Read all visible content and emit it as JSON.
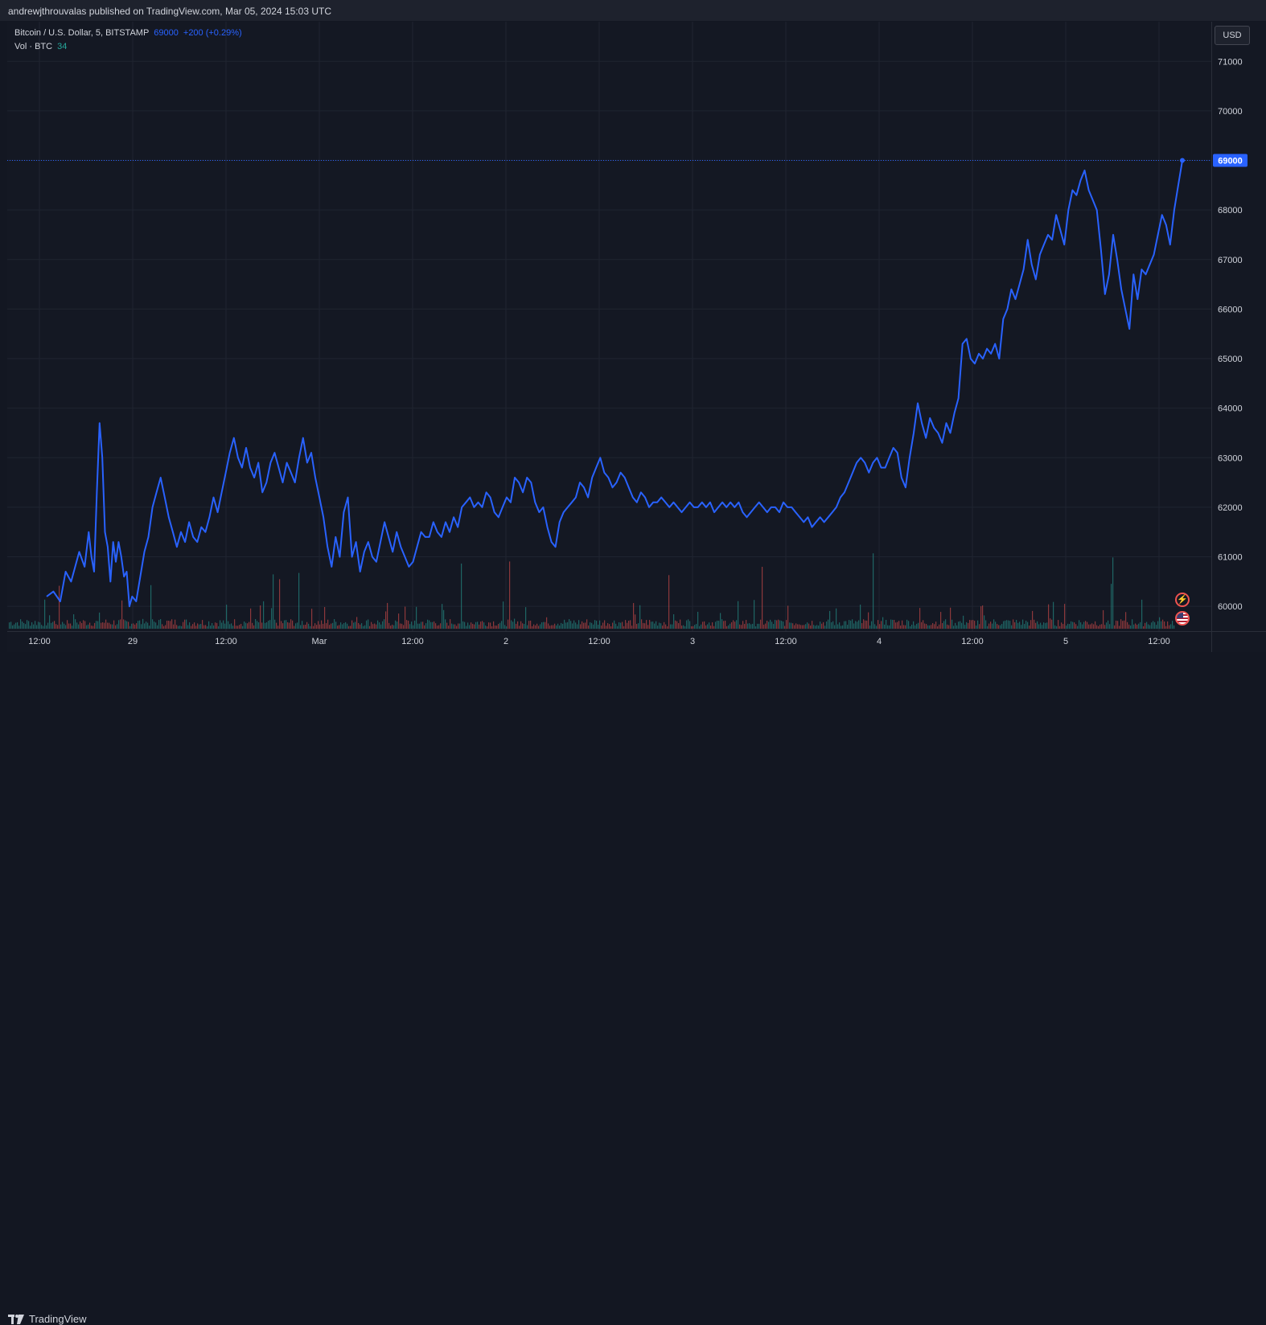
{
  "header": {
    "publisher": "andrewjthrouvalas published on TradingView.com, Mar 05, 2024 15:03 UTC"
  },
  "legend": {
    "symbol": "Bitcoin / U.S. Dollar, 5, BITSTAMP",
    "price": "69000",
    "change": "+200 (+0.29%)",
    "volume_label": "Vol · BTC",
    "volume_value": "34"
  },
  "currency_button": "USD",
  "brand": "TradingView",
  "colors": {
    "line": "#2962ff",
    "up": "#26a69a",
    "down": "#ef5350",
    "grid": "#1f2430"
  },
  "chart_data": {
    "type": "line",
    "title": "Bitcoin / U.S. Dollar, 5, BITSTAMP",
    "xlabel": "",
    "ylabel": "",
    "ylim": [
      59500,
      71800
    ],
    "y_ticks": [
      60000,
      61000,
      62000,
      63000,
      64000,
      65000,
      66000,
      67000,
      68000,
      69000,
      70000,
      71000
    ],
    "x_range_days": [
      0,
      6.28
    ],
    "x_ticks": [
      {
        "label": "12:00",
        "day": 0.5
      },
      {
        "label": "29",
        "day": 1
      },
      {
        "label": "12:00",
        "day": 1.5
      },
      {
        "label": "Mar",
        "day": 2
      },
      {
        "label": "12:00",
        "day": 2.5
      },
      {
        "label": "2",
        "day": 3
      },
      {
        "label": "12:00",
        "day": 3.5
      },
      {
        "label": "3",
        "day": 4
      },
      {
        "label": "12:00",
        "day": 4.5
      },
      {
        "label": "4",
        "day": 5
      },
      {
        "label": "12:00",
        "day": 5.5
      },
      {
        "label": "5",
        "day": 6
      },
      {
        "label": "12:00",
        "day": 6.5
      }
    ],
    "last_price": 69000,
    "series": [
      {
        "name": "BTCUSD",
        "points": [
          [
            0.0,
            60200
          ],
          [
            0.05,
            60300
          ],
          [
            0.1,
            60100
          ],
          [
            0.14,
            60700
          ],
          [
            0.18,
            60500
          ],
          [
            0.24,
            61100
          ],
          [
            0.28,
            60800
          ],
          [
            0.31,
            61500
          ],
          [
            0.33,
            61000
          ],
          [
            0.35,
            60700
          ],
          [
            0.37,
            62300
          ],
          [
            0.39,
            63700
          ],
          [
            0.41,
            63000
          ],
          [
            0.43,
            61500
          ],
          [
            0.45,
            61200
          ],
          [
            0.47,
            60500
          ],
          [
            0.49,
            61300
          ],
          [
            0.51,
            60900
          ],
          [
            0.53,
            61300
          ],
          [
            0.55,
            61000
          ],
          [
            0.57,
            60600
          ],
          [
            0.59,
            60700
          ],
          [
            0.61,
            60000
          ],
          [
            0.63,
            60200
          ],
          [
            0.66,
            60100
          ],
          [
            0.69,
            60600
          ],
          [
            0.72,
            61100
          ],
          [
            0.75,
            61400
          ],
          [
            0.78,
            62000
          ],
          [
            0.81,
            62300
          ],
          [
            0.84,
            62600
          ],
          [
            0.87,
            62200
          ],
          [
            0.9,
            61800
          ],
          [
            0.93,
            61500
          ],
          [
            0.96,
            61200
          ],
          [
            0.99,
            61500
          ],
          [
            1.02,
            61300
          ],
          [
            1.05,
            61700
          ],
          [
            1.08,
            61400
          ],
          [
            1.11,
            61300
          ],
          [
            1.14,
            61600
          ],
          [
            1.17,
            61500
          ],
          [
            1.2,
            61800
          ],
          [
            1.23,
            62200
          ],
          [
            1.26,
            61900
          ],
          [
            1.29,
            62300
          ],
          [
            1.32,
            62700
          ],
          [
            1.35,
            63100
          ],
          [
            1.38,
            63400
          ],
          [
            1.41,
            63000
          ],
          [
            1.44,
            62800
          ],
          [
            1.47,
            63200
          ],
          [
            1.5,
            62800
          ],
          [
            1.53,
            62600
          ],
          [
            1.56,
            62900
          ],
          [
            1.59,
            62300
          ],
          [
            1.62,
            62500
          ],
          [
            1.65,
            62900
          ],
          [
            1.68,
            63100
          ],
          [
            1.71,
            62800
          ],
          [
            1.74,
            62500
          ],
          [
            1.77,
            62900
          ],
          [
            1.8,
            62700
          ],
          [
            1.83,
            62500
          ],
          [
            1.86,
            63000
          ],
          [
            1.89,
            63400
          ],
          [
            1.92,
            62900
          ],
          [
            1.95,
            63100
          ],
          [
            1.98,
            62600
          ],
          [
            2.01,
            62200
          ],
          [
            2.04,
            61800
          ],
          [
            2.07,
            61200
          ],
          [
            2.1,
            60800
          ],
          [
            2.13,
            61400
          ],
          [
            2.16,
            61000
          ],
          [
            2.19,
            61900
          ],
          [
            2.22,
            62200
          ],
          [
            2.25,
            61000
          ],
          [
            2.28,
            61300
          ],
          [
            2.31,
            60700
          ],
          [
            2.34,
            61100
          ],
          [
            2.37,
            61300
          ],
          [
            2.4,
            61000
          ],
          [
            2.43,
            60900
          ],
          [
            2.46,
            61300
          ],
          [
            2.49,
            61700
          ],
          [
            2.52,
            61400
          ],
          [
            2.55,
            61100
          ],
          [
            2.58,
            61500
          ],
          [
            2.61,
            61200
          ],
          [
            2.64,
            61000
          ],
          [
            2.67,
            60800
          ],
          [
            2.7,
            60900
          ],
          [
            2.73,
            61200
          ],
          [
            2.76,
            61500
          ],
          [
            2.79,
            61400
          ],
          [
            2.82,
            61400
          ],
          [
            2.85,
            61700
          ],
          [
            2.88,
            61500
          ],
          [
            2.91,
            61400
          ],
          [
            2.94,
            61700
          ],
          [
            2.97,
            61500
          ],
          [
            3.0,
            61800
          ],
          [
            3.03,
            61600
          ],
          [
            3.06,
            62000
          ],
          [
            3.09,
            62100
          ],
          [
            3.12,
            62200
          ],
          [
            3.15,
            62000
          ],
          [
            3.18,
            62100
          ],
          [
            3.21,
            62000
          ],
          [
            3.24,
            62300
          ],
          [
            3.27,
            62200
          ],
          [
            3.3,
            61900
          ],
          [
            3.33,
            61800
          ],
          [
            3.36,
            62000
          ],
          [
            3.39,
            62200
          ],
          [
            3.42,
            62100
          ],
          [
            3.45,
            62600
          ],
          [
            3.48,
            62500
          ],
          [
            3.51,
            62300
          ],
          [
            3.54,
            62600
          ],
          [
            3.57,
            62500
          ],
          [
            3.6,
            62100
          ],
          [
            3.63,
            61900
          ],
          [
            3.66,
            62000
          ],
          [
            3.69,
            61600
          ],
          [
            3.72,
            61300
          ],
          [
            3.75,
            61200
          ],
          [
            3.78,
            61700
          ],
          [
            3.81,
            61900
          ],
          [
            3.84,
            62000
          ],
          [
            3.87,
            62100
          ],
          [
            3.9,
            62200
          ],
          [
            3.93,
            62500
          ],
          [
            3.96,
            62400
          ],
          [
            3.99,
            62200
          ],
          [
            4.02,
            62600
          ],
          [
            4.05,
            62800
          ],
          [
            4.08,
            63000
          ],
          [
            4.11,
            62700
          ],
          [
            4.14,
            62600
          ],
          [
            4.17,
            62400
          ],
          [
            4.2,
            62500
          ],
          [
            4.23,
            62700
          ],
          [
            4.26,
            62600
          ],
          [
            4.29,
            62400
          ],
          [
            4.32,
            62200
          ],
          [
            4.35,
            62100
          ],
          [
            4.38,
            62300
          ],
          [
            4.41,
            62200
          ],
          [
            4.44,
            62000
          ],
          [
            4.47,
            62100
          ],
          [
            4.5,
            62100
          ],
          [
            4.53,
            62200
          ],
          [
            4.56,
            62100
          ],
          [
            4.59,
            62000
          ],
          [
            4.62,
            62100
          ],
          [
            4.65,
            62000
          ],
          [
            4.68,
            61900
          ],
          [
            4.71,
            62000
          ],
          [
            4.74,
            62100
          ],
          [
            4.77,
            62000
          ],
          [
            4.8,
            62000
          ],
          [
            4.83,
            62100
          ],
          [
            4.86,
            62000
          ],
          [
            4.89,
            62100
          ],
          [
            4.92,
            61900
          ],
          [
            4.95,
            62000
          ],
          [
            4.98,
            62100
          ],
          [
            5.01,
            62000
          ],
          [
            5.04,
            62100
          ],
          [
            5.07,
            62000
          ],
          [
            5.1,
            62100
          ],
          [
            5.13,
            61900
          ],
          [
            5.16,
            61800
          ],
          [
            5.19,
            61900
          ],
          [
            5.22,
            62000
          ],
          [
            5.25,
            62100
          ],
          [
            5.28,
            62000
          ],
          [
            5.31,
            61900
          ],
          [
            5.34,
            62000
          ],
          [
            5.37,
            62000
          ],
          [
            5.4,
            61900
          ],
          [
            5.43,
            62100
          ],
          [
            5.46,
            62000
          ],
          [
            5.49,
            62000
          ],
          [
            5.52,
            61900
          ],
          [
            5.55,
            61800
          ],
          [
            5.58,
            61700
          ],
          [
            5.61,
            61800
          ],
          [
            5.64,
            61600
          ],
          [
            5.67,
            61700
          ],
          [
            5.7,
            61800
          ],
          [
            5.73,
            61700
          ],
          [
            5.76,
            61800
          ],
          [
            5.79,
            61900
          ],
          [
            5.82,
            62000
          ],
          [
            5.85,
            62200
          ],
          [
            5.88,
            62300
          ],
          [
            5.91,
            62500
          ],
          [
            5.94,
            62700
          ],
          [
            5.97,
            62900
          ],
          [
            6.0,
            63000
          ],
          [
            6.03,
            62900
          ],
          [
            6.06,
            62700
          ],
          [
            6.09,
            62900
          ],
          [
            6.12,
            63000
          ],
          [
            6.15,
            62800
          ],
          [
            6.18,
            62800
          ],
          [
            6.21,
            63000
          ],
          [
            6.24,
            63200
          ],
          [
            6.27,
            63100
          ],
          [
            6.3,
            62600
          ],
          [
            6.33,
            62400
          ],
          [
            6.36,
            63000
          ],
          [
            6.39,
            63500
          ],
          [
            6.42,
            64100
          ],
          [
            6.45,
            63700
          ],
          [
            6.48,
            63400
          ],
          [
            6.51,
            63800
          ],
          [
            6.54,
            63600
          ],
          [
            6.57,
            63500
          ],
          [
            6.6,
            63300
          ],
          [
            6.63,
            63700
          ],
          [
            6.66,
            63500
          ],
          [
            6.69,
            63900
          ],
          [
            6.72,
            64200
          ],
          [
            6.75,
            65300
          ],
          [
            6.78,
            65400
          ],
          [
            6.81,
            65000
          ],
          [
            6.84,
            64900
          ],
          [
            6.87,
            65100
          ],
          [
            6.9,
            65000
          ],
          [
            6.93,
            65200
          ],
          [
            6.96,
            65100
          ],
          [
            6.99,
            65300
          ],
          [
            7.02,
            65000
          ],
          [
            7.05,
            65800
          ],
          [
            7.08,
            66000
          ],
          [
            7.11,
            66400
          ],
          [
            7.14,
            66200
          ],
          [
            7.17,
            66500
          ],
          [
            7.2,
            66800
          ],
          [
            7.23,
            67400
          ],
          [
            7.26,
            66900
          ],
          [
            7.29,
            66600
          ],
          [
            7.32,
            67100
          ],
          [
            7.35,
            67300
          ],
          [
            7.38,
            67500
          ],
          [
            7.41,
            67400
          ],
          [
            7.44,
            67900
          ],
          [
            7.47,
            67600
          ],
          [
            7.5,
            67300
          ],
          [
            7.53,
            68000
          ],
          [
            7.56,
            68400
          ],
          [
            7.59,
            68300
          ],
          [
            7.62,
            68600
          ],
          [
            7.65,
            68800
          ],
          [
            7.68,
            68400
          ],
          [
            7.71,
            68200
          ],
          [
            7.74,
            68000
          ],
          [
            7.77,
            67200
          ],
          [
            7.8,
            66300
          ],
          [
            7.83,
            66700
          ],
          [
            7.86,
            67500
          ],
          [
            7.89,
            67000
          ],
          [
            7.92,
            66400
          ],
          [
            7.95,
            66000
          ],
          [
            7.98,
            65600
          ],
          [
            8.01,
            66700
          ],
          [
            8.04,
            66200
          ],
          [
            8.07,
            66800
          ],
          [
            8.1,
            66700
          ],
          [
            8.13,
            66900
          ],
          [
            8.16,
            67100
          ],
          [
            8.19,
            67500
          ],
          [
            8.22,
            67900
          ],
          [
            8.25,
            67700
          ],
          [
            8.28,
            67300
          ],
          [
            8.31,
            68000
          ],
          [
            8.34,
            68500
          ],
          [
            8.37,
            69000
          ]
        ]
      }
    ],
    "volume_series": {
      "name": "Vol · BTC",
      "max_value": 34,
      "last_value": 34
    }
  }
}
